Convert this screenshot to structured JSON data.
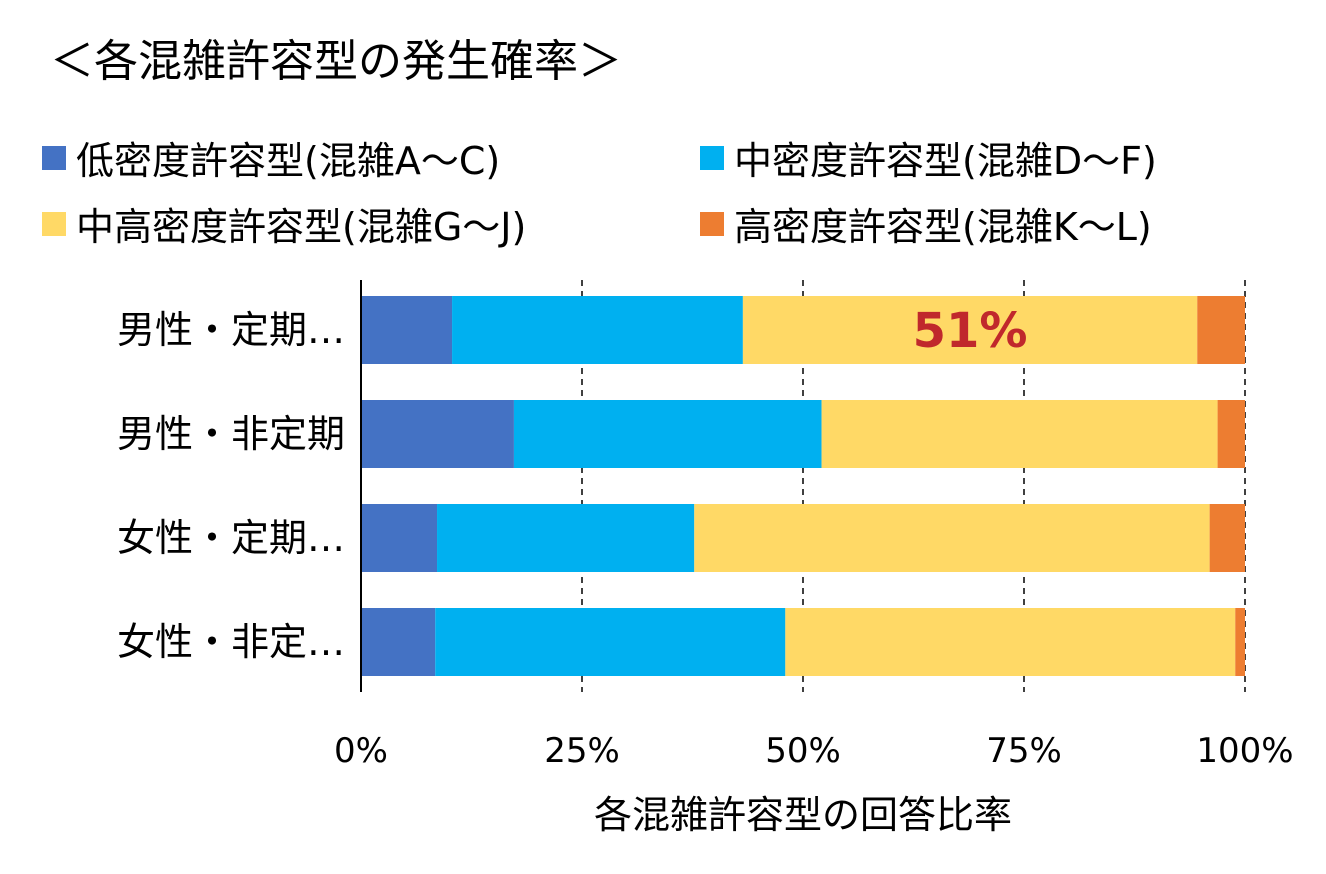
{
  "chart_data": {
    "type": "bar",
    "orientation": "horizontal",
    "stacked": "percent",
    "title": "＜各混雑許容型の発生確率＞",
    "xlabel": "各混雑許容型の回答比率",
    "ylabel": "",
    "xlim": [
      0,
      100
    ],
    "x_ticks": [
      "0%",
      "25%",
      "50%",
      "75%",
      "100%"
    ],
    "grid": "vertical dashed",
    "legend_position": "top",
    "categories": [
      "男性・定期…",
      "男性・非定期",
      "女性・定期…",
      "女性・非定…"
    ],
    "series": [
      {
        "name": "低密度許容型(混雑A～C)",
        "color": "#4472c4",
        "values": [
          10.3,
          17.3,
          8.6,
          8.4
        ]
      },
      {
        "name": "中密度許容型(混雑D～F)",
        "color": "#00b0f0",
        "values": [
          32.9,
          34.8,
          29.1,
          39.6
        ]
      },
      {
        "name": "中高密度許容型(混雑G～J)",
        "color": "#ffd966",
        "values": [
          51.4,
          44.8,
          58.3,
          50.9
        ]
      },
      {
        "name": "高密度許容型(混雑K～L)",
        "color": "#ed7d31",
        "values": [
          5.4,
          3.1,
          4.0,
          1.1
        ]
      }
    ],
    "annotations": [
      {
        "text": "51%",
        "category": "男性・定期…",
        "series": "中高密度許容型(混雑G～J)",
        "color": "#c0282c"
      }
    ]
  }
}
